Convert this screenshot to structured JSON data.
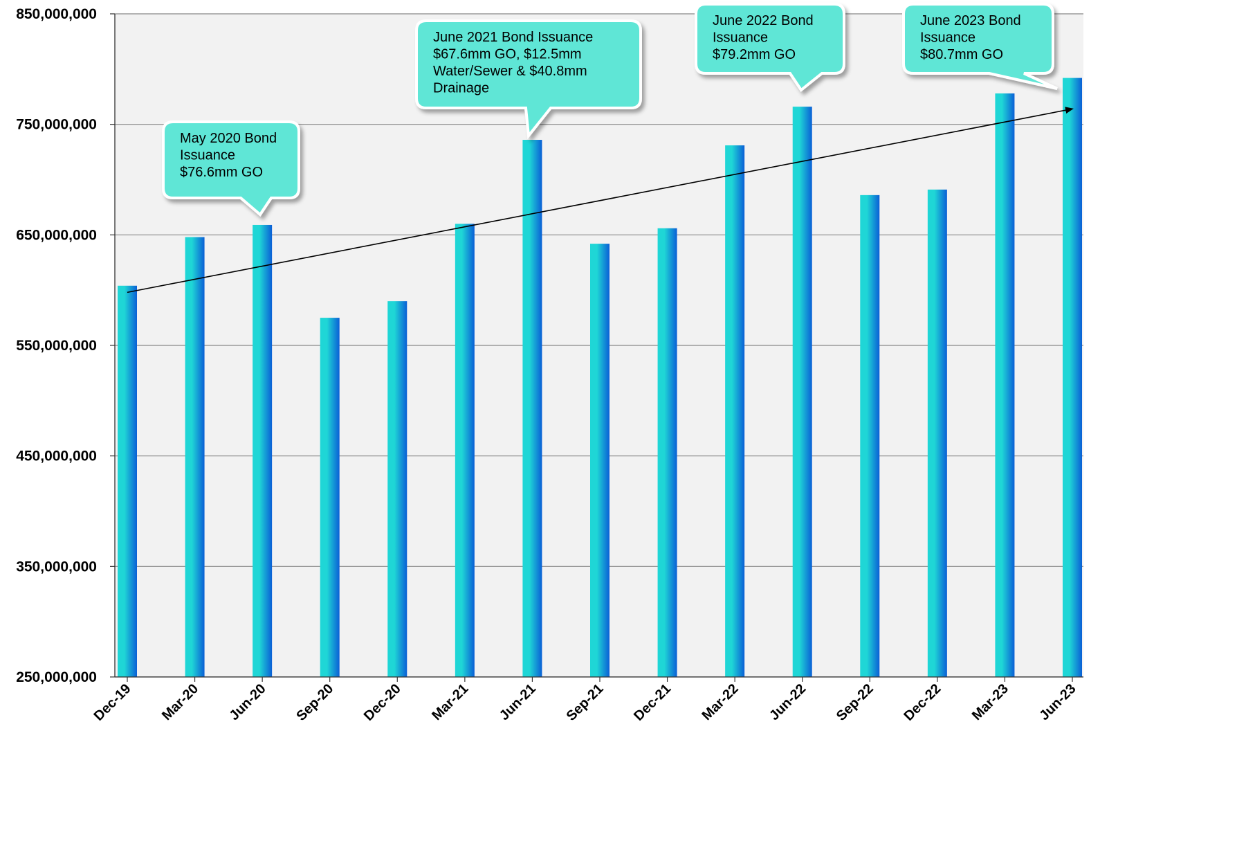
{
  "chart_data": {
    "type": "bar",
    "title": "",
    "xlabel": "",
    "ylabel": "",
    "ylim": [
      250000000,
      850000000
    ],
    "yticks": [
      250000000,
      350000000,
      450000000,
      550000000,
      650000000,
      750000000,
      850000000
    ],
    "ytick_labels": [
      "250,000,000",
      "350,000,000",
      "450,000,000",
      "550,000,000",
      "650,000,000",
      "750,000,000",
      "850,000,000"
    ],
    "grid": true,
    "legend": "none",
    "categories": [
      "Dec-19",
      "Mar-20",
      "Jun-20",
      "Sep-20",
      "Dec-20",
      "Mar-21",
      "Jun-21",
      "Sep-21",
      "Dec-21",
      "Mar-22",
      "Jun-22",
      "Sep-22",
      "Dec-22",
      "Mar-23",
      "Jun-23"
    ],
    "values": [
      604000000,
      648000000,
      659000000,
      575000000,
      590000000,
      660000000,
      736000000,
      642000000,
      656000000,
      731000000,
      766000000,
      686000000,
      691000000,
      778000000,
      792000000
    ],
    "trendline": {
      "from": [
        "Dec-19",
        598000000
      ],
      "to": [
        "Jun-23",
        764000000
      ],
      "arrow": true
    },
    "annotations": [
      {
        "category": "Jun-20",
        "lines": [
          "May 2020 Bond",
          "Issuance",
          "$76.6mm GO"
        ]
      },
      {
        "category": "Jun-21",
        "lines": [
          "June 2021 Bond Issuance",
          "$67.6mm GO, $12.5mm",
          "Water/Sewer & $40.8mm",
          "Drainage"
        ]
      },
      {
        "category": "Jun-22",
        "lines": [
          "June 2022 Bond",
          "Issuance",
          "$79.2mm GO"
        ]
      },
      {
        "category": "Jun-23",
        "lines": [
          "June 2023 Bond",
          "Issuance",
          "$80.7mm GO"
        ]
      }
    ],
    "colors": {
      "plot_background": "#f2f2f2",
      "gridline": "#888888",
      "bar_light": "#1fd6d6",
      "bar_dark": "#0a5fd6",
      "callout_fill": "#5fe6d6",
      "callout_border": "#ffffff"
    }
  }
}
